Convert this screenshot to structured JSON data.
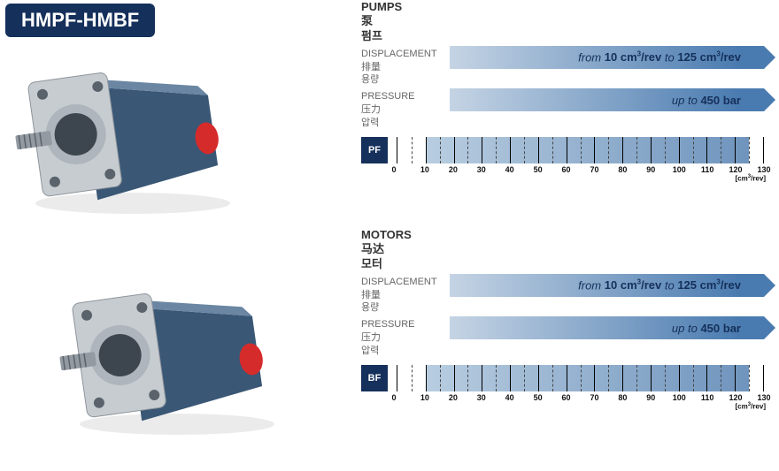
{
  "title": "HMPF-HMBF",
  "colors": {
    "brand": "#15305a",
    "arrow_start": "#c5d4e4",
    "arrow_end": "#4a7bb0",
    "chart_fill_start": "#b8cde0",
    "chart_fill_end": "#6f94bd",
    "body_dark": "#3a5775",
    "body_light": "#6a86a3",
    "flange": "#c7ccd0",
    "port": "#d62b2b"
  },
  "chart": {
    "xmin": 0,
    "xmax": 130,
    "major_ticks": [
      0,
      10,
      20,
      30,
      40,
      50,
      60,
      70,
      80,
      90,
      100,
      110,
      120,
      130
    ],
    "minor_every": 5,
    "fill_from": 10,
    "fill_to": 125,
    "unit_html": "[cm<sup>3</sup>/rev]"
  },
  "pumps": {
    "section_en": "PUMPS",
    "section_zh": "泵",
    "section_ko": "펌프",
    "displacement_label_en": "DISPLACEMENT",
    "displacement_label_zh": "排量",
    "displacement_label_ko": "용량",
    "displacement_value_html": "from <b>10 cm<sup>3</sup>/rev</b> to <b>125 cm<sup>3</sup>/rev</b>",
    "pressure_label_en": "PRESSURE",
    "pressure_label_zh": "压力",
    "pressure_label_ko": "압력",
    "pressure_value_html": "up to <b>450 bar</b>",
    "badge": "PF"
  },
  "motors": {
    "section_en": "MOTORS",
    "section_zh": "马达",
    "section_ko": "모터",
    "displacement_label_en": "DISPLACEMENT",
    "displacement_label_zh": "排量",
    "displacement_label_ko": "용량",
    "displacement_value_html": "from <b>10 cm<sup>3</sup>/rev</b> to <b>125 cm<sup>3</sup>/rev</b>",
    "pressure_label_en": "PRESSURE",
    "pressure_label_zh": "压力",
    "pressure_label_ko": "압력",
    "pressure_value_html": "up to <b>450 bar</b>",
    "badge": "BF"
  }
}
